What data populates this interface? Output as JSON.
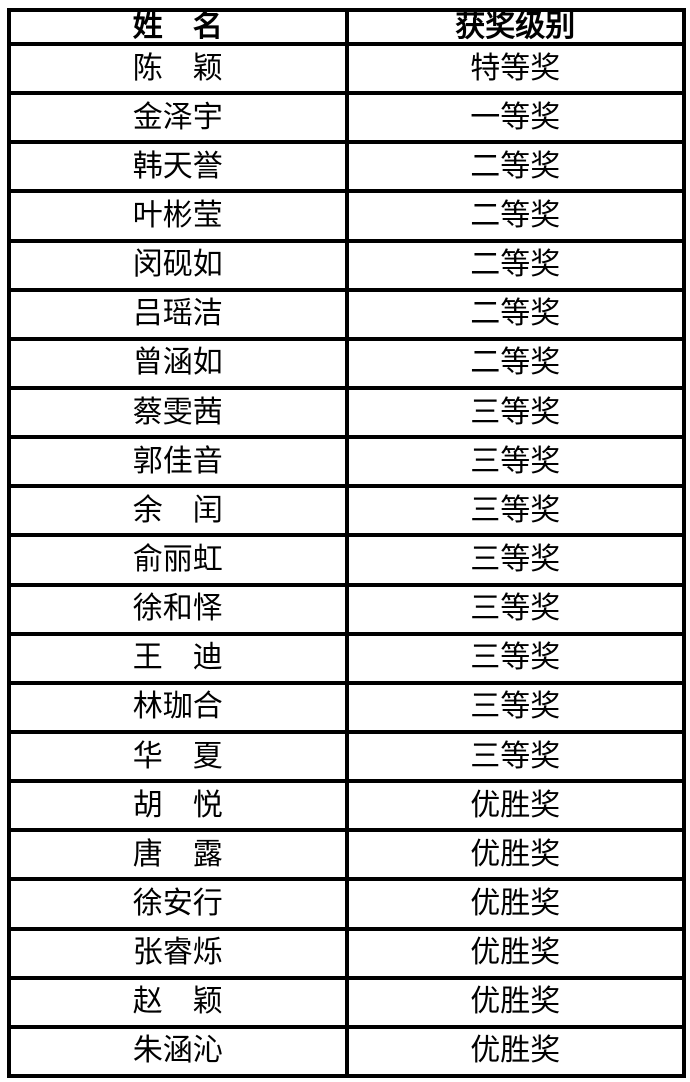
{
  "table": {
    "colors": {
      "border": "#000000",
      "text": "#000000",
      "background": "#ffffff"
    },
    "headers": [
      {
        "label": "姓　名"
      },
      {
        "label": "获奖级别"
      }
    ],
    "rows": [
      {
        "name": "陈　颖",
        "award": "特等奖"
      },
      {
        "name": "金泽宇",
        "award": "一等奖"
      },
      {
        "name": "韩天誉",
        "award": "二等奖"
      },
      {
        "name": "叶彬莹",
        "award": "二等奖"
      },
      {
        "name": "闵砚如",
        "award": "二等奖"
      },
      {
        "name": "吕瑶洁",
        "award": "二等奖"
      },
      {
        "name": "曾涵如",
        "award": "二等奖"
      },
      {
        "name": "蔡雯茜",
        "award": "三等奖"
      },
      {
        "name": "郭佳音",
        "award": "三等奖"
      },
      {
        "name": "余　闰",
        "award": "三等奖"
      },
      {
        "name": "俞丽虹",
        "award": "三等奖"
      },
      {
        "name": "徐和怿",
        "award": "三等奖"
      },
      {
        "name": "王　迪",
        "award": "三等奖"
      },
      {
        "name": "林珈合",
        "award": "三等奖"
      },
      {
        "name": "华　夏",
        "award": "三等奖"
      },
      {
        "name": "胡　悦",
        "award": "优胜奖"
      },
      {
        "name": "唐　露",
        "award": "优胜奖"
      },
      {
        "name": "徐安行",
        "award": "优胜奖"
      },
      {
        "name": "张睿烁",
        "award": "优胜奖"
      },
      {
        "name": "赵　颖",
        "award": "优胜奖"
      },
      {
        "name": "朱涵沁",
        "award": "优胜奖"
      }
    ]
  }
}
